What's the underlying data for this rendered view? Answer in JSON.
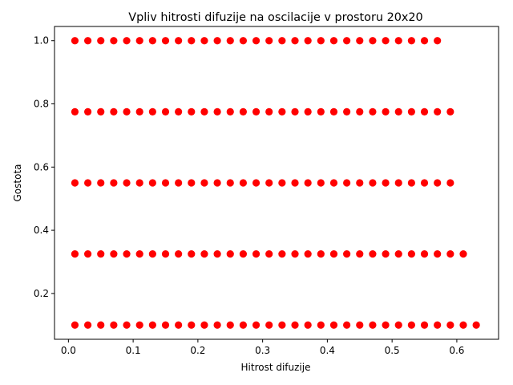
{
  "chart_data": {
    "type": "scatter",
    "title": "Vpliv hitrosti difuzije na oscilacije v prostoru 20x20",
    "xlabel": "Hitrost difuzije",
    "ylabel": "Gostota",
    "xlim": [
      -0.0215,
      0.6645
    ],
    "ylim": [
      0.055,
      1.045
    ],
    "xticks": [
      0.0,
      0.1,
      0.2,
      0.3,
      0.4,
      0.5,
      0.6
    ],
    "xtick_labels": [
      "0.0",
      "0.1",
      "0.2",
      "0.3",
      "0.4",
      "0.5",
      "0.6"
    ],
    "yticks": [
      0.2,
      0.4,
      0.6,
      0.8,
      1.0
    ],
    "ytick_labels": [
      "0.2",
      "0.4",
      "0.6",
      "0.8",
      "1.0"
    ],
    "grid": false,
    "marker_color": "#ff0000",
    "series": [
      {
        "rows": [
          {
            "y": 1.0,
            "x_start": 0.01,
            "x_step": 0.02,
            "count": 29
          },
          {
            "y": 0.775,
            "x_start": 0.01,
            "x_step": 0.02,
            "count": 30
          },
          {
            "y": 0.55,
            "x_start": 0.01,
            "x_step": 0.02,
            "count": 30
          },
          {
            "y": 0.325,
            "x_start": 0.01,
            "x_step": 0.02,
            "count": 31
          },
          {
            "y": 0.1,
            "x_start": 0.01,
            "x_step": 0.02,
            "count": 32
          }
        ]
      }
    ]
  }
}
